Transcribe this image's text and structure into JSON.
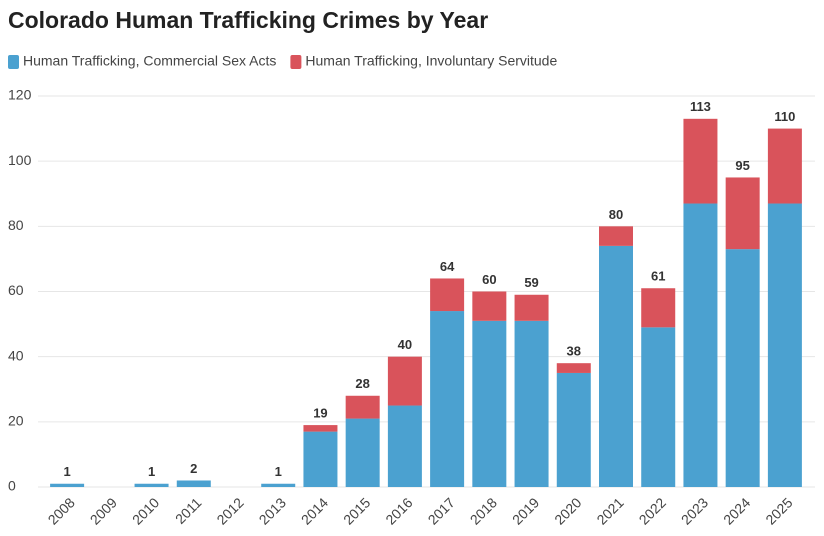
{
  "chart_data": {
    "type": "stacked_bar",
    "title": "Colorado Human Trafficking Crimes by Year",
    "categories": [
      "2008",
      "2009",
      "2010",
      "2011",
      "2012",
      "2013",
      "2014",
      "2015",
      "2016",
      "2017",
      "2018",
      "2019",
      "2020",
      "2021",
      "2022",
      "2023",
      "2024",
      "2025"
    ],
    "series": [
      {
        "name": "Human Trafficking, Commercial Sex Acts",
        "color": "#4ba1d0",
        "values": [
          1,
          0,
          1,
          2,
          0,
          1,
          17,
          21,
          25,
          54,
          51,
          51,
          35,
          74,
          49,
          87,
          73,
          87
        ]
      },
      {
        "name": "Human Trafficking, Involuntary Servitude",
        "color": "#d9535b",
        "values": [
          0,
          0,
          0,
          0,
          0,
          0,
          2,
          7,
          15,
          10,
          9,
          8,
          3,
          6,
          12,
          26,
          22,
          23
        ]
      }
    ],
    "totals": [
      1,
      null,
      1,
      2,
      null,
      1,
      19,
      28,
      40,
      64,
      60,
      59,
      38,
      80,
      61,
      113,
      95,
      110
    ],
    "ylim": [
      0,
      120
    ],
    "yticks": [
      0,
      20,
      40,
      60,
      80,
      100,
      120
    ],
    "grid": true,
    "legend": "top-left"
  }
}
